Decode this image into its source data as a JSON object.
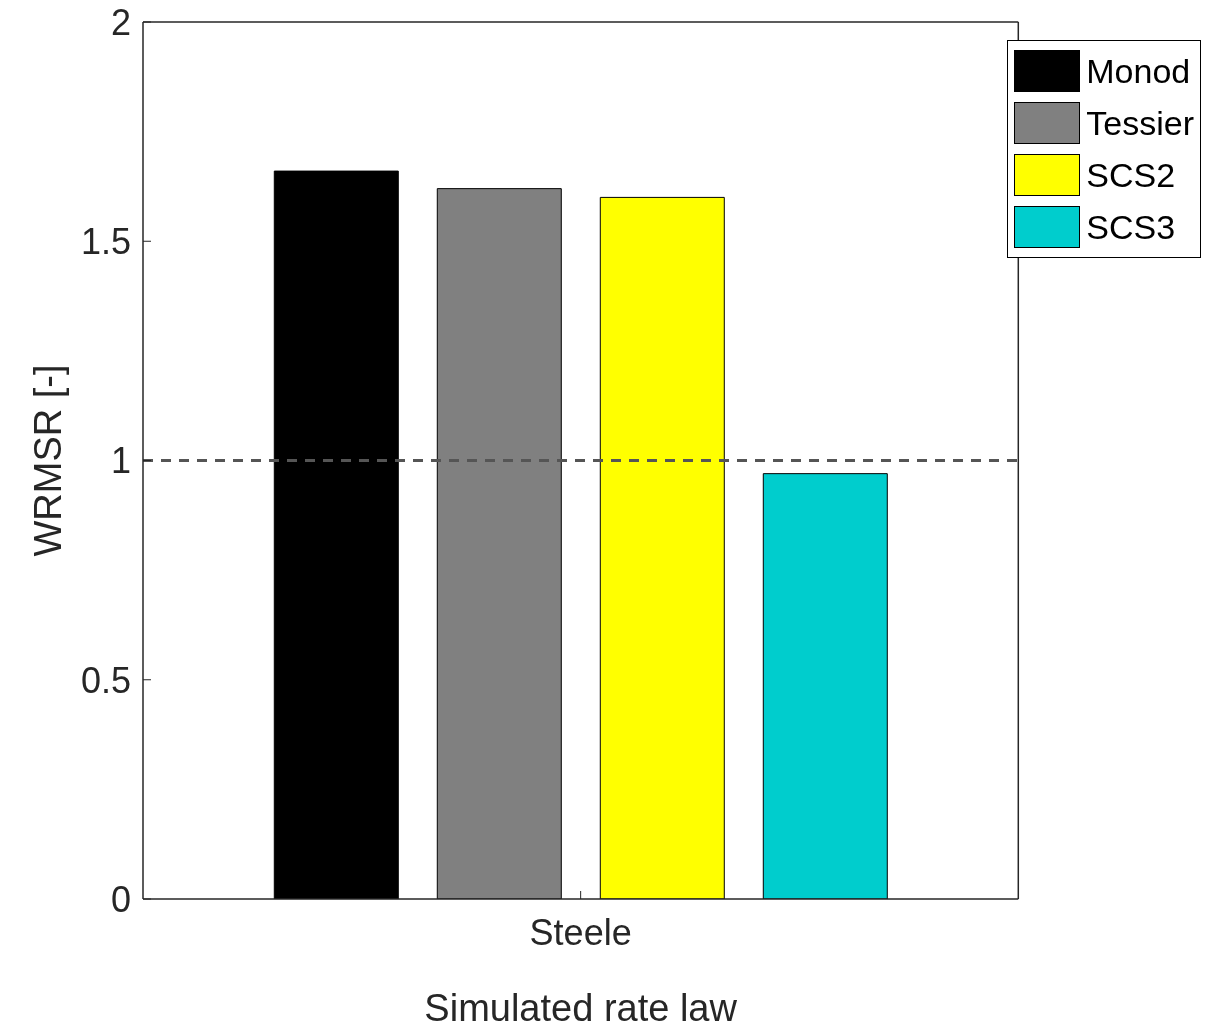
{
  "chart_data": {
    "type": "bar",
    "xlabel": "Simulated rate law",
    "ylabel": "WRMSR [-]",
    "categories": [
      "Steele"
    ],
    "series": [
      {
        "name": "Monod",
        "color": "#000000",
        "values": [
          1.66
        ]
      },
      {
        "name": "Tessier",
        "color": "#808080",
        "values": [
          1.62
        ]
      },
      {
        "name": "SCS2",
        "color": "#ffff00",
        "values": [
          1.6
        ]
      },
      {
        "name": "SCS3",
        "color": "#00cdcd",
        "values": [
          0.97
        ]
      }
    ],
    "ylim": [
      0,
      2
    ],
    "yticks": [
      0,
      0.5,
      1,
      1.5,
      2
    ],
    "grid": false,
    "legend": "top right",
    "ref_lines": [
      {
        "axis": "y",
        "value": 1,
        "color": "#555555",
        "line_style": "dashed"
      }
    ]
  }
}
